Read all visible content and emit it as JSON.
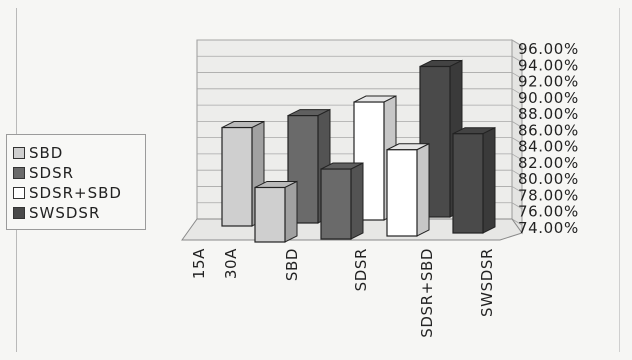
{
  "chart_data": {
    "type": "bar",
    "title": "",
    "xlabel": "",
    "ylabel": "",
    "ylim": [
      74,
      96
    ],
    "yticks": [
      "74.00%",
      "76.00%",
      "78.00%",
      "80.00%",
      "82.00%",
      "84.00%",
      "86.00%",
      "88.00%",
      "90.00%",
      "92.00%",
      "94.00%",
      "96.00%"
    ],
    "categories": [
      "15A",
      "30A"
    ],
    "series": [
      {
        "name": "SBD",
        "values": [
          86.1,
          80.7
        ],
        "color": "#cfcfcf"
      },
      {
        "name": "SDSR",
        "values": [
          87.2,
          82.6
        ],
        "color": "#6a6a6a"
      },
      {
        "name": "SDSR+SBD",
        "values": [
          88.5,
          84.6
        ],
        "color": "#ffffff"
      },
      {
        "name": "SWSDSR",
        "values": [
          92.5,
          86.2
        ],
        "color": "#4a4a4a"
      }
    ],
    "axis_labels": [
      "15A",
      "30A",
      "SBD",
      "SDSR",
      "SDSR+SBD",
      "SWSDSR"
    ],
    "grid": true,
    "legend_position": "left"
  }
}
